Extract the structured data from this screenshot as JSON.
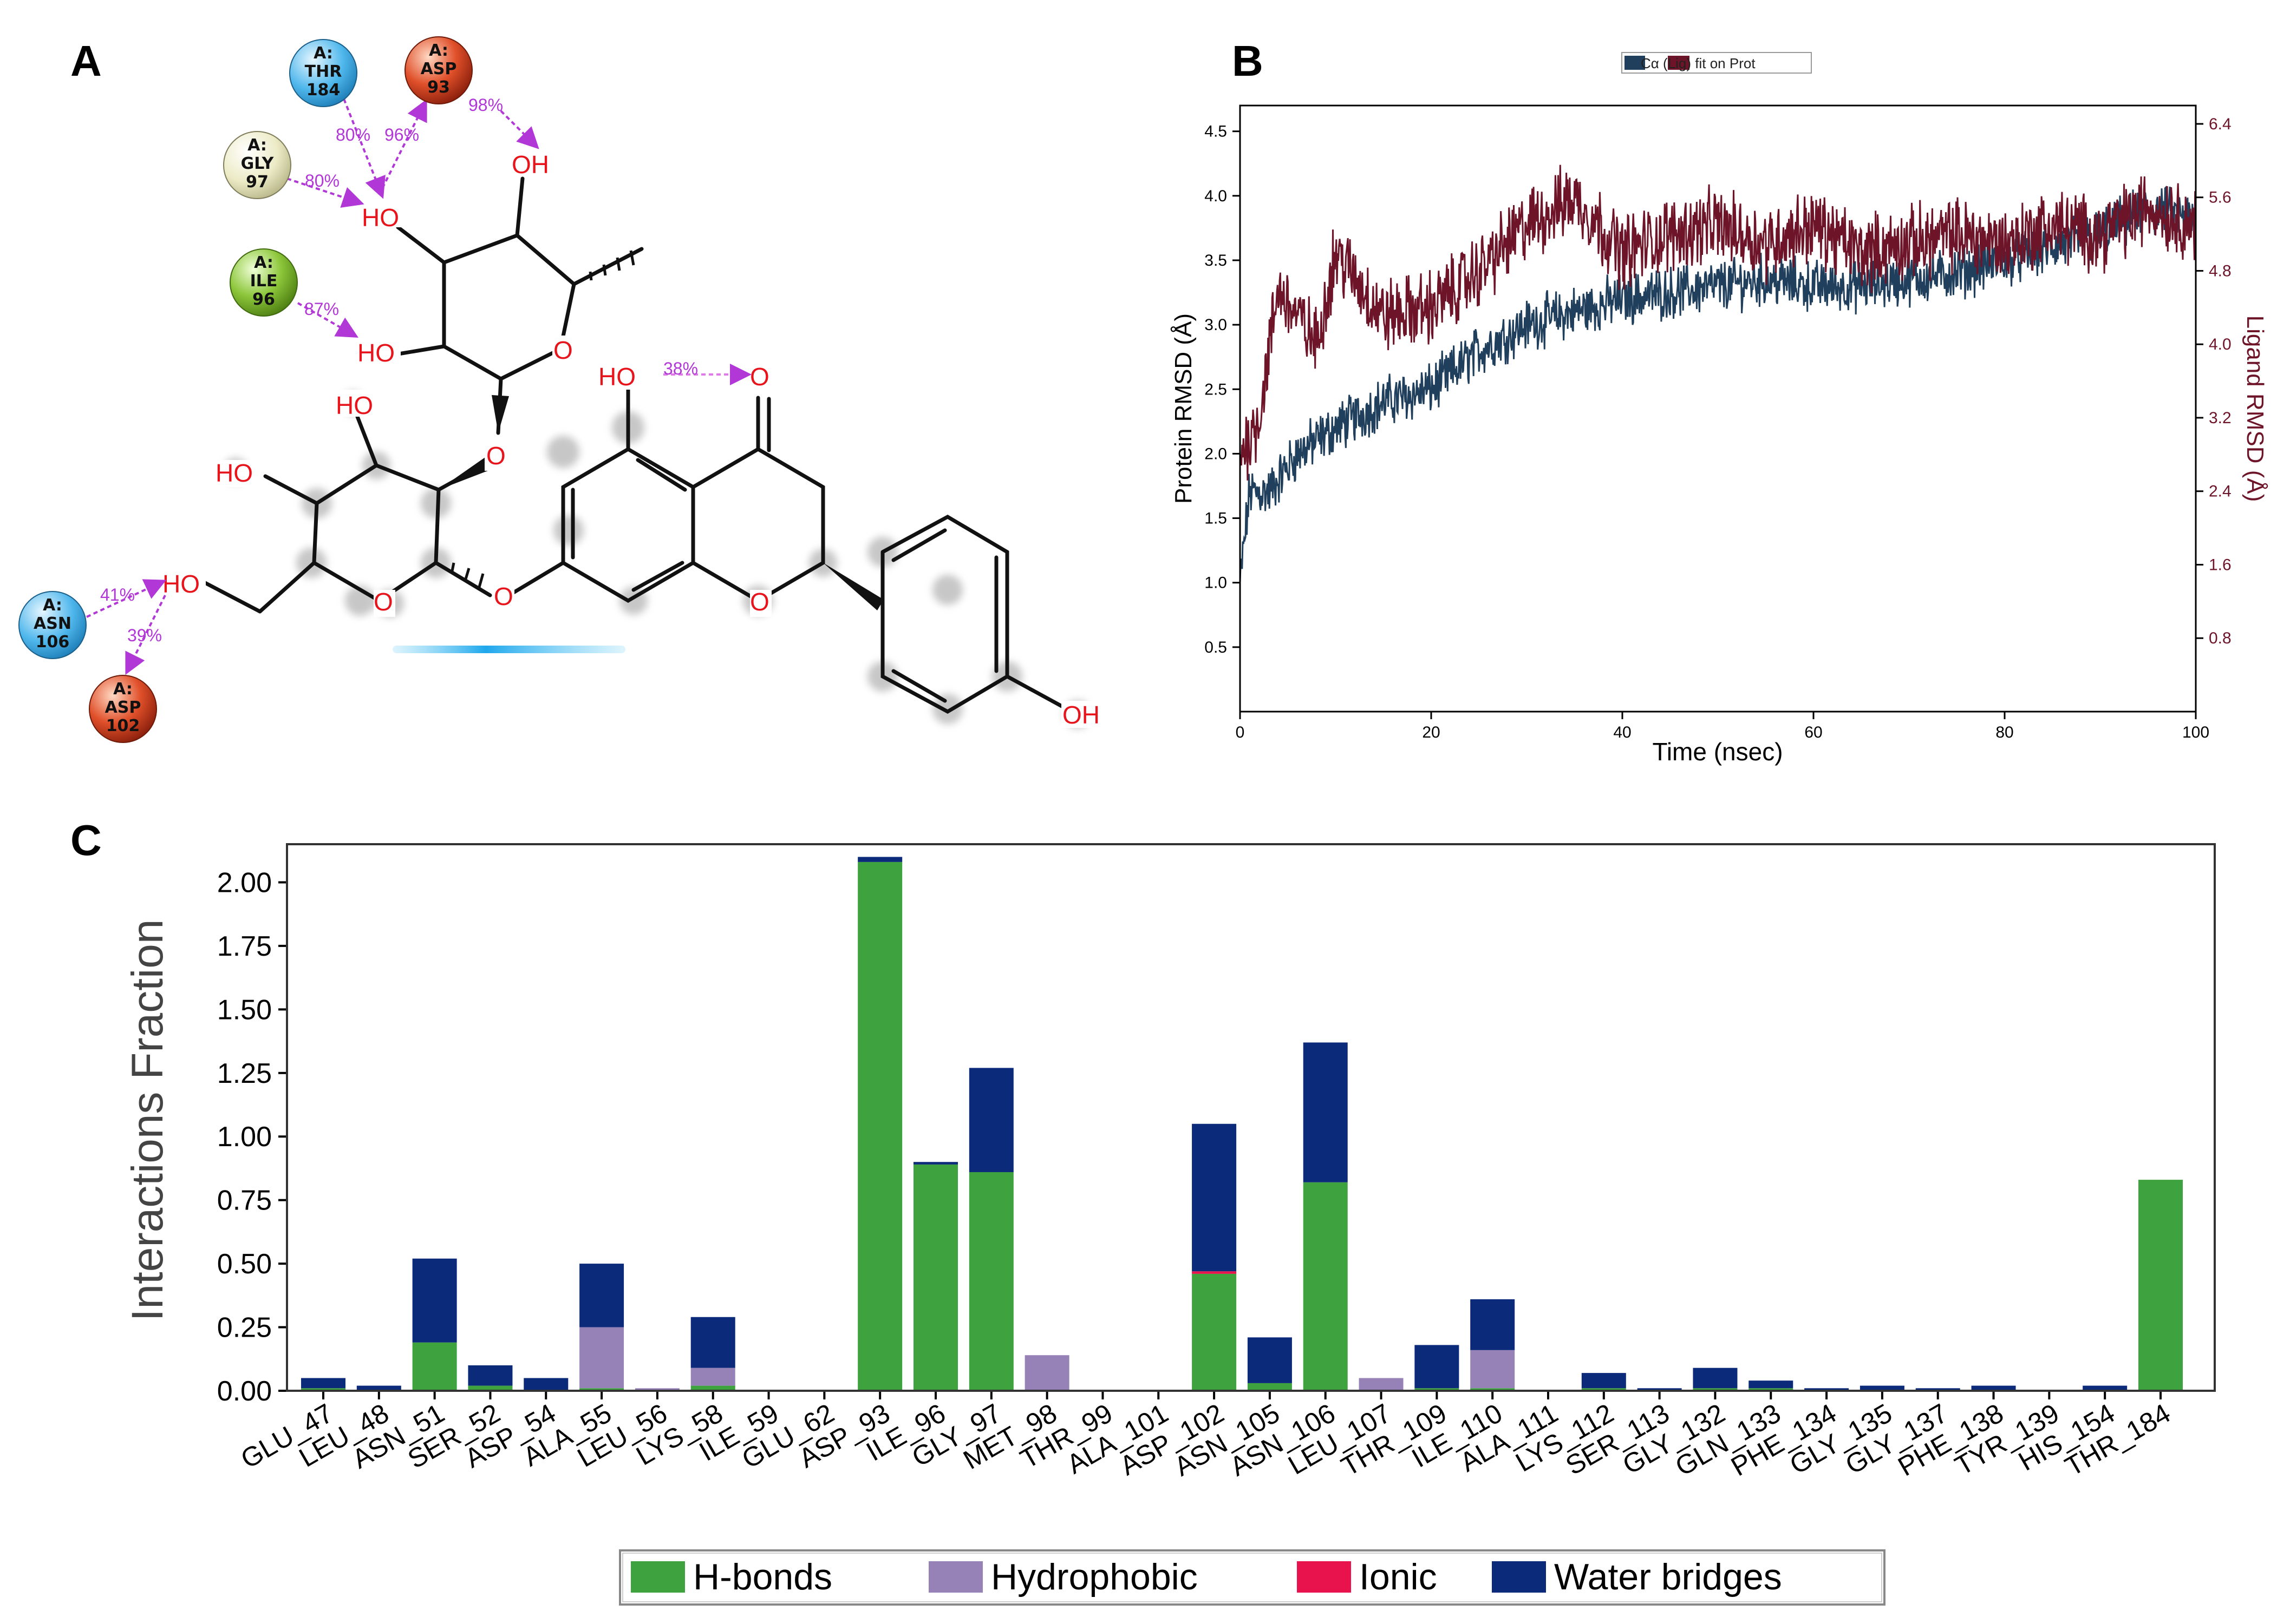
{
  "panels": {
    "a": "A",
    "b": "B",
    "c": "C"
  },
  "interaction_diagram": {
    "residues": [
      {
        "id": "thr184",
        "chain": "A:",
        "name": "THR",
        "num": "184",
        "color": "#4fb7ec"
      },
      {
        "id": "asp93",
        "chain": "A:",
        "name": "ASP",
        "num": "93",
        "color": "#d9471e"
      },
      {
        "id": "gly97",
        "chain": "A:",
        "name": "GLY",
        "num": "97",
        "color": "#e8e8c0"
      },
      {
        "id": "ile96",
        "chain": "A:",
        "name": "ILE",
        "num": "96",
        "color": "#8cc63a"
      },
      {
        "id": "asn106",
        "chain": "A:",
        "name": "ASN",
        "num": "106",
        "color": "#4fb7ec"
      },
      {
        "id": "asp102",
        "chain": "A:",
        "name": "ASP",
        "num": "102",
        "color": "#d9471e"
      }
    ],
    "percentages": {
      "thr184": "80%",
      "asp93_a": "96%",
      "asp93_b": "98%",
      "gly97": "80%",
      "ile96": "87%",
      "intra": "38%",
      "asn106": "41%",
      "asp102": "39%"
    },
    "atoms": {
      "ho": "HO",
      "oh": "OH",
      "o": "O"
    }
  },
  "chart_data": [
    {
      "type": "line",
      "legend": "Cα (Lig) fit on Prot",
      "legend_loc": "top-center",
      "xlabel": "Time (nsec)",
      "ylabel_left": "Protein RMSD (Å)",
      "ylabel_right": "Ligand RMSD (Å)",
      "xlim": [
        0,
        100
      ],
      "ylim_left": [
        0,
        4.7
      ],
      "ylim_right": [
        0,
        6.6
      ],
      "x_ticks": [
        0,
        20,
        40,
        60,
        80,
        100
      ],
      "y_ticks_left": [
        "0.5",
        "1.0",
        "1.5",
        "2.0",
        "2.5",
        "3.0",
        "3.5",
        "4.0",
        "4.5"
      ],
      "y_ticks_right": [
        "0.8",
        "1.6",
        "2.4",
        "3.2",
        "4.0",
        "4.8",
        "5.6",
        "6.4"
      ],
      "series": [
        {
          "axis": "left",
          "color": "#1f3f5c",
          "points": [
            [
              0,
              1.0
            ],
            [
              1,
              1.7
            ],
            [
              3,
              1.7
            ],
            [
              6,
              2.0
            ],
            [
              10,
              2.2
            ],
            [
              15,
              2.4
            ],
            [
              20,
              2.5
            ],
            [
              25,
              2.8
            ],
            [
              30,
              3.0
            ],
            [
              35,
              3.1
            ],
            [
              40,
              3.2
            ],
            [
              45,
              3.25
            ],
            [
              50,
              3.3
            ],
            [
              55,
              3.35
            ],
            [
              60,
              3.3
            ],
            [
              65,
              3.3
            ],
            [
              70,
              3.35
            ],
            [
              75,
              3.4
            ],
            [
              80,
              3.5
            ],
            [
              85,
              3.6
            ],
            [
              90,
              3.7
            ],
            [
              95,
              3.9
            ],
            [
              100,
              3.8
            ]
          ],
          "noise": 0.16
        },
        {
          "axis": "right",
          "color": "#6e1428",
          "points": [
            [
              0,
              2.8
            ],
            [
              2,
              3.2
            ],
            [
              4,
              4.6
            ],
            [
              8,
              4.0
            ],
            [
              10,
              5.0
            ],
            [
              15,
              4.3
            ],
            [
              20,
              4.4
            ],
            [
              25,
              4.8
            ],
            [
              30,
              5.3
            ],
            [
              35,
              5.6
            ],
            [
              40,
              5.0
            ],
            [
              45,
              5.2
            ],
            [
              50,
              5.3
            ],
            [
              55,
              5.1
            ],
            [
              60,
              5.3
            ],
            [
              65,
              5.0
            ],
            [
              70,
              5.1
            ],
            [
              75,
              5.2
            ],
            [
              80,
              5.1
            ],
            [
              85,
              5.3
            ],
            [
              90,
              5.2
            ],
            [
              95,
              5.5
            ],
            [
              100,
              5.3
            ]
          ],
          "noise": 0.32
        }
      ]
    },
    {
      "type": "bar",
      "stacked": true,
      "ylabel": "Interactions Fraction",
      "ylim": [
        0,
        2.15
      ],
      "y_ticks": [
        "0.00",
        "0.25",
        "0.50",
        "0.75",
        "1.00",
        "1.25",
        "1.50",
        "1.75",
        "2.00"
      ],
      "legend_loc": "bottom-center",
      "categories": [
        "GLU_47",
        "LEU_48",
        "ASN_51",
        "SER_52",
        "ASP_54",
        "ALA_55",
        "LEU_56",
        "LYS_58",
        "ILE_59",
        "GLU_62",
        "ASP_93",
        "ILE_96",
        "GLY_97",
        "MET_98",
        "THR_99",
        "ALA_101",
        "ASP_102",
        "ASN_105",
        "ASN_106",
        "LEU_107",
        "THR_109",
        "ILE_110",
        "ALA_111",
        "LYS_112",
        "SER_113",
        "GLY_132",
        "GLN_133",
        "PHE_134",
        "GLY_135",
        "GLY_137",
        "PHE_138",
        "TYR_139",
        "HIS_154",
        "THR_184"
      ],
      "series": [
        {
          "name": "H-bonds",
          "color": "#3ea23e",
          "values": [
            0.01,
            0.0,
            0.19,
            0.02,
            0.0,
            0.01,
            0.0,
            0.02,
            0.0,
            0.0,
            2.08,
            0.89,
            0.86,
            0.0,
            0.0,
            0.0,
            0.46,
            0.03,
            0.82,
            0.0,
            0.01,
            0.01,
            0.0,
            0.01,
            0.0,
            0.01,
            0.01,
            0.0,
            0.0,
            0.0,
            0.0,
            0.0,
            0.0,
            0.83
          ]
        },
        {
          "name": "Hydrophobic",
          "color": "#9782b8",
          "values": [
            0.0,
            0.0,
            0.0,
            0.0,
            0.0,
            0.24,
            0.01,
            0.07,
            0.0,
            0.0,
            0.0,
            0.0,
            0.0,
            0.14,
            0.0,
            0.0,
            0.0,
            0.0,
            0.0,
            0.05,
            0.0,
            0.15,
            0.0,
            0.0,
            0.0,
            0.0,
            0.0,
            0.0,
            0.0,
            0.0,
            0.0,
            0.0,
            0.0,
            0.0
          ]
        },
        {
          "name": "Ionic",
          "color": "#e8134d",
          "values": [
            0,
            0,
            0,
            0,
            0,
            0,
            0,
            0,
            0,
            0,
            0,
            0,
            0,
            0,
            0,
            0,
            0.01,
            0,
            0,
            0,
            0,
            0,
            0,
            0,
            0,
            0,
            0,
            0,
            0,
            0,
            0,
            0,
            0,
            0
          ]
        },
        {
          "name": "Water bridges",
          "color": "#0c2a7a",
          "values": [
            0.04,
            0.02,
            0.33,
            0.08,
            0.05,
            0.25,
            0.0,
            0.2,
            0.0,
            0.0,
            0.02,
            0.01,
            0.41,
            0.0,
            0.0,
            0.0,
            0.58,
            0.18,
            0.55,
            0.0,
            0.17,
            0.2,
            0.0,
            0.06,
            0.01,
            0.08,
            0.03,
            0.01,
            0.02,
            0.01,
            0.02,
            0.0,
            0.02,
            0.0
          ]
        }
      ]
    }
  ]
}
